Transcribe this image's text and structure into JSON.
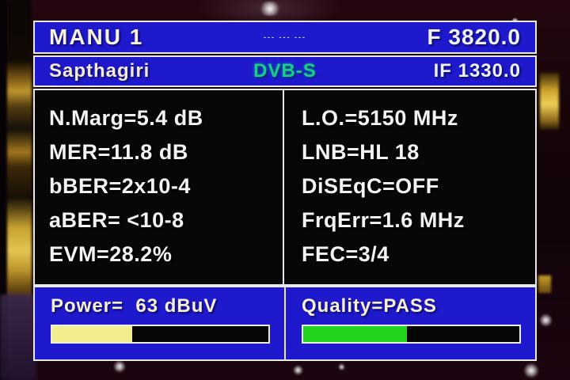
{
  "header": {
    "title": "MANU 1",
    "separator": "--- --- ---",
    "frequency": "F 3820.0"
  },
  "subheader": {
    "provider": "Sapthagiri",
    "standard": "DVB-S",
    "if_frequency": "IF 1330.0"
  },
  "measurements": {
    "left": [
      "N.Marg=5.4 dB",
      "MER=11.8 dB",
      "bBER=2x10-4",
      "aBER= <10-8",
      "EVM=28.2%"
    ],
    "right": [
      "L.O.=5150 MHz",
      "LNB=HL 18",
      "DiSEqC=OFF",
      "FrqErr=1.6 MHz",
      "FEC=3/4"
    ]
  },
  "power": {
    "label": "Power=  63 dBuV",
    "bar_percent": 37,
    "bar_color": "#f2ee8d"
  },
  "quality": {
    "label": "Quality=PASS",
    "bar_percent": 48,
    "bar_color": "#23d41f"
  },
  "colors": {
    "osd_blue": "#1e19cd",
    "dvbs_green": "#19cd82",
    "border_white": "#e9e9e9",
    "panel_black": "#070707"
  }
}
